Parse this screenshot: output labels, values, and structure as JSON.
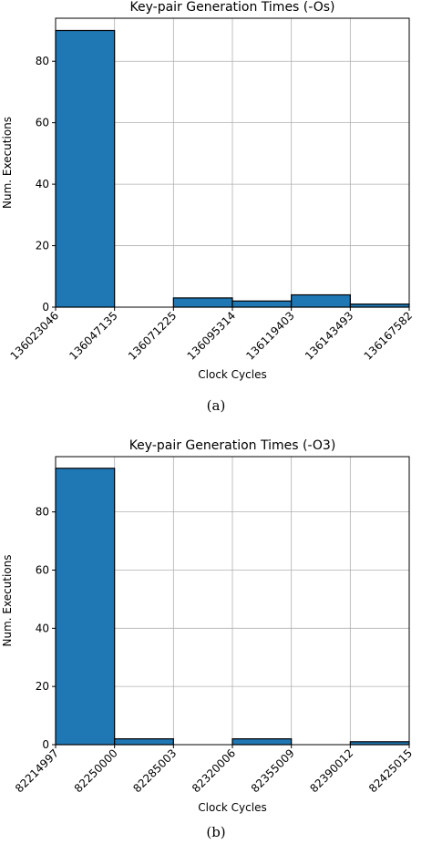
{
  "chart_data": [
    {
      "type": "bar",
      "title": "Key-pair Generation Times (-Os)",
      "xlabel": "Clock Cycles",
      "ylabel": "Num. Executions",
      "x_ticks": [
        "136023046",
        "136047135",
        "136071225",
        "136095314",
        "136119403",
        "136143493",
        "136167582"
      ],
      "y_ticks": [
        "0",
        "20",
        "40",
        "60",
        "80"
      ],
      "ylim": [
        0,
        94
      ],
      "values": [
        90,
        0,
        3,
        2,
        4,
        1
      ],
      "bar_color": "#1f77b4",
      "grid": true
    },
    {
      "type": "bar",
      "title": "Key-pair Generation Times (-O3)",
      "xlabel": "Clock Cycles",
      "ylabel": "Num. Executions",
      "x_ticks": [
        "82214997",
        "82250000",
        "82285003",
        "82320006",
        "82355009",
        "82390012",
        "82425015"
      ],
      "y_ticks": [
        "0",
        "20",
        "40",
        "60",
        "80"
      ],
      "ylim": [
        0,
        99
      ],
      "values": [
        95,
        2,
        0,
        2,
        0,
        1
      ],
      "bar_color": "#1f77b4",
      "grid": true
    }
  ],
  "captions": [
    "(a)",
    "(b)"
  ]
}
